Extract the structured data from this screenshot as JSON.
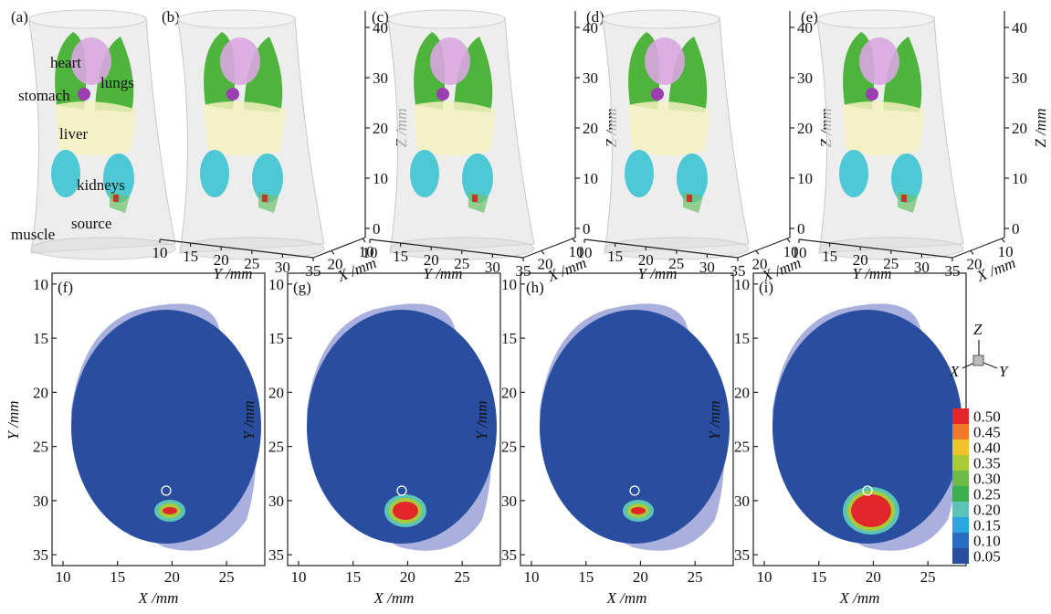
{
  "panels_3d": [
    {
      "label": "(a)"
    },
    {
      "label": "(b)"
    },
    {
      "label": "(c)"
    },
    {
      "label": "(d)"
    },
    {
      "label": "(e)"
    }
  ],
  "organ_labels": [
    "heart",
    "lungs",
    "stomach",
    "liver",
    "kidneys",
    "source",
    "muscle"
  ],
  "axes_3d": {
    "z_label": "Z /mm",
    "zlim": [
      0,
      40
    ],
    "zticks": [
      0,
      10,
      20,
      30,
      40
    ],
    "y_label": "Y /mm",
    "ylim": [
      10,
      35
    ],
    "yticks": [
      10,
      15,
      20,
      25,
      30,
      35
    ],
    "x_label": "X /mm",
    "xlim": [
      20,
      10
    ],
    "xticks": [
      20,
      10
    ]
  },
  "panels_2d": [
    {
      "label": "(f)"
    },
    {
      "label": "(g)"
    },
    {
      "label": "(h)"
    },
    {
      "label": "(i)"
    }
  ],
  "axes_2d": {
    "x_label": "X /mm",
    "xlim": [
      9,
      28.5
    ],
    "xticks": [
      10,
      15,
      20,
      25
    ],
    "y_label": "Y /mm",
    "ylim": [
      9,
      36
    ],
    "yticks": [
      10,
      15,
      20,
      25,
      30,
      35
    ]
  },
  "triad": {
    "z": "Z",
    "x": "X",
    "y": "Y"
  },
  "colorbar": {
    "ticks": [
      {
        "value": 0.5,
        "label": "0.50",
        "color": "#e3262a"
      },
      {
        "value": 0.45,
        "label": "0.45",
        "color": "#ef7a2b"
      },
      {
        "value": 0.4,
        "label": "0.40",
        "color": "#f2c12e"
      },
      {
        "value": 0.35,
        "label": "0.35",
        "color": "#a9cb3a"
      },
      {
        "value": 0.3,
        "label": "0.30",
        "color": "#6cbc45"
      },
      {
        "value": 0.25,
        "label": "0.25",
        "color": "#3daf4c"
      },
      {
        "value": 0.2,
        "label": "0.20",
        "color": "#5cc4b6"
      },
      {
        "value": 0.15,
        "label": "0.15",
        "color": "#2ba7df"
      },
      {
        "value": 0.1,
        "label": "0.10",
        "color": "#2b6cc3"
      },
      {
        "value": 0.05,
        "label": "0.05",
        "color": "#2a4e9f"
      }
    ]
  }
}
